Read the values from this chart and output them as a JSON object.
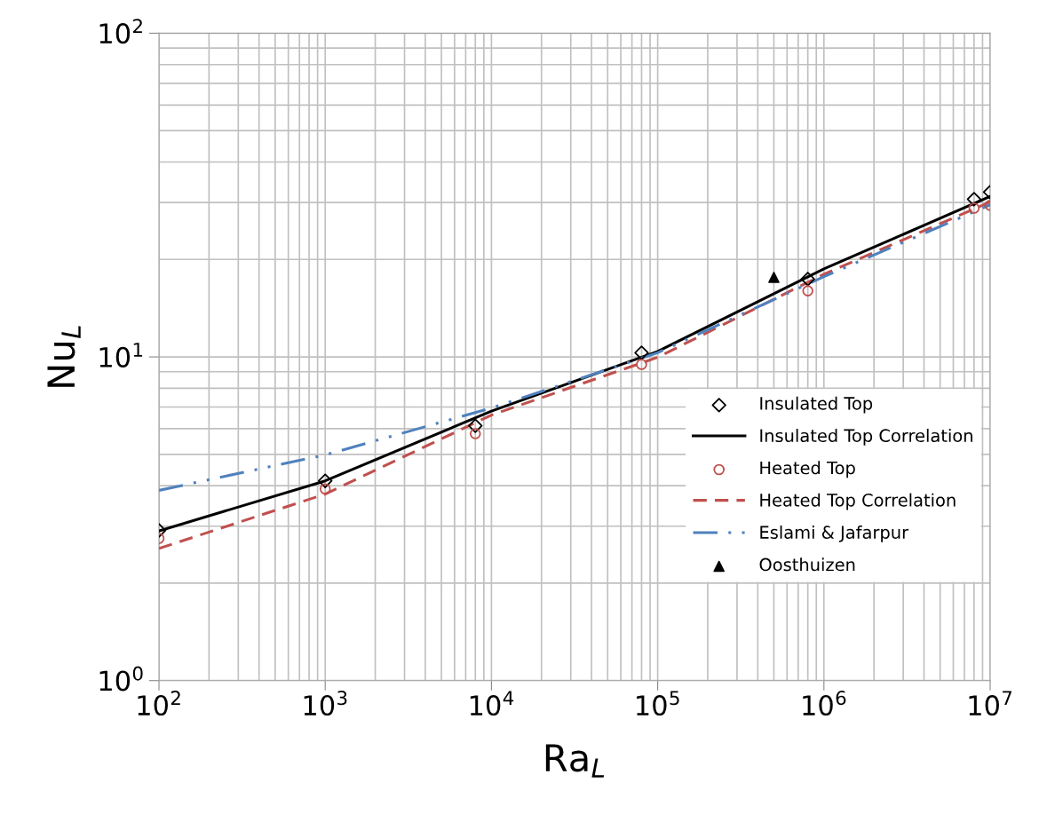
{
  "chart_data": {
    "type": "line",
    "xlabel": "Ra$_{L}$",
    "ylabel": "Nu$_{L}$",
    "log": "xy",
    "grid": true,
    "legend": "bottom right",
    "xlim": [
      100,
      10000000
    ],
    "ylim": [
      1,
      100
    ],
    "xticks": [
      {
        "value": 100,
        "label": "10$^{2}$"
      },
      {
        "value": 1000,
        "label": "10$^{3}$"
      },
      {
        "value": 10000,
        "label": "10$^{4}$"
      },
      {
        "value": 100000,
        "label": "10$^{5}$"
      },
      {
        "value": 1000000,
        "label": "10$^{6}$"
      },
      {
        "value": 10000000,
        "label": "10$^{7}$"
      }
    ],
    "yticks": [
      {
        "value": 1,
        "label": "10$^{0}$"
      },
      {
        "value": 10,
        "label": "10$^{1}$"
      },
      {
        "value": 100,
        "label": "10$^{2}$"
      }
    ],
    "series": [
      {
        "name": "Insulated Top",
        "type": "scatter",
        "marker": "diamond",
        "color": "#000000",
        "x": [
          100,
          1000,
          8000,
          80000,
          800000,
          8000000,
          10000000
        ],
        "values": [
          2.91,
          4.14,
          6.13,
          10.3,
          17.4,
          30.7,
          32.3
        ]
      },
      {
        "name": "Insulated Top Correlation",
        "marker": "none",
        "line_style": "solid",
        "color": "#000000",
        "x": [
          100,
          1000,
          10000,
          100000,
          1000000,
          10000000
        ],
        "values": [
          2.9,
          4.14,
          6.8,
          10.4,
          18.7,
          31.3
        ]
      },
      {
        "name": "Heated Top",
        "type": "scatter",
        "marker": "circle",
        "color": "#c0504d",
        "x": [
          100,
          1000,
          8000,
          80000,
          800000,
          8000000,
          10000000
        ],
        "values": [
          2.75,
          3.91,
          5.79,
          9.48,
          16.0,
          28.8,
          29.4
        ]
      },
      {
        "name": "Heated Top Correlation",
        "marker": "none",
        "line_style": "dashed",
        "color": "#c0504d",
        "x": [
          100,
          1000,
          10000,
          100000,
          1000000,
          10000000
        ],
        "values": [
          2.56,
          3.77,
          6.61,
          9.97,
          18.0,
          30.1
        ]
      },
      {
        "name": "Eslami & Jafarpur",
        "marker": "none",
        "line_style": "dashdot",
        "color": "#4f81bd",
        "x": [
          100,
          1000,
          10000,
          100000,
          1000000,
          10000000
        ],
        "values": [
          3.87,
          4.98,
          6.95,
          10.3,
          17.7,
          29.5
        ]
      },
      {
        "name": "Oosthuizen",
        "type": "scatter",
        "marker": "triangle",
        "color": "#000000",
        "x": [
          500000
        ],
        "values": [
          17.6
        ]
      }
    ]
  }
}
